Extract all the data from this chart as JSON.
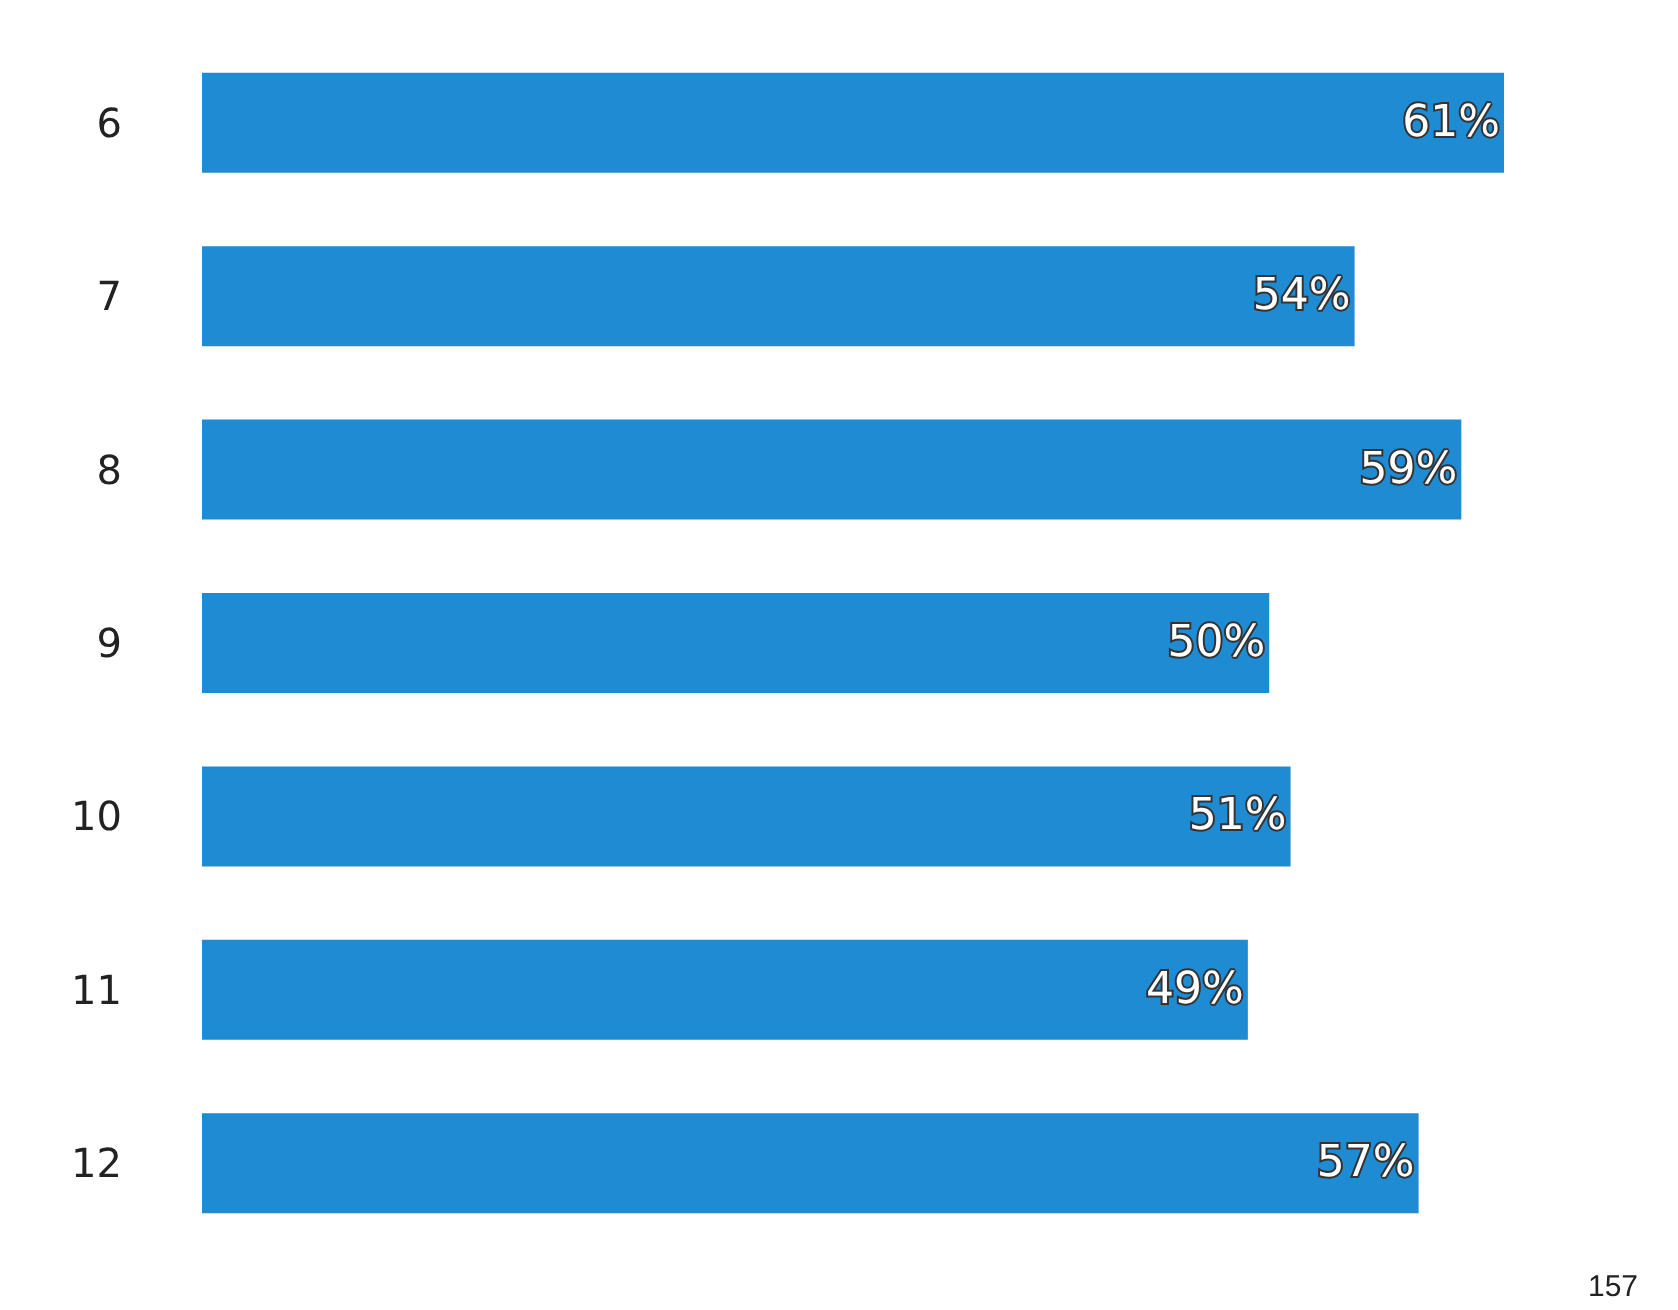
{
  "chart_data": {
    "type": "bar",
    "orientation": "horizontal",
    "categories": [
      "6",
      "7",
      "8",
      "9",
      "10",
      "11",
      "12"
    ],
    "values": [
      61,
      54,
      59,
      50,
      51,
      49,
      57
    ],
    "value_labels": [
      "61%",
      "54%",
      "59%",
      "50%",
      "51%",
      "49%",
      "57%"
    ],
    "color": "#1e8bd3",
    "annotations": [
      "157"
    ]
  }
}
